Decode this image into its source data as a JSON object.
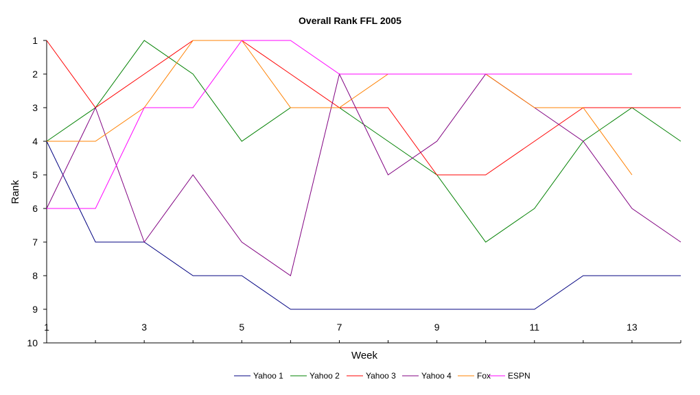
{
  "chart_data": {
    "type": "line",
    "title": "Overall Rank FFL 2005",
    "xlabel": "Week",
    "ylabel": "Rank",
    "x": [
      1,
      2,
      3,
      4,
      5,
      6,
      7,
      8,
      9,
      10,
      11,
      12,
      13,
      14
    ],
    "x_tick_labels": [
      "1",
      "3",
      "5",
      "7",
      "9",
      "11",
      "13"
    ],
    "y_tick_labels": [
      "1",
      "2",
      "3",
      "4",
      "5",
      "6",
      "7",
      "8",
      "9",
      "10"
    ],
    "xlim": [
      1,
      14
    ],
    "ylim": [
      1,
      10
    ],
    "y_reversed": true,
    "grid": false,
    "legend_position": "bottom",
    "series": [
      {
        "name": "Yahoo 1",
        "color": "#000080",
        "values": [
          4,
          7,
          7,
          8,
          8,
          9,
          9,
          9,
          9,
          9,
          9,
          8,
          8,
          8
        ]
      },
      {
        "name": "Yahoo 2",
        "color": "#008000",
        "values": [
          4,
          3,
          1,
          2,
          4,
          3,
          3,
          4,
          5,
          7,
          6,
          4,
          3,
          4
        ]
      },
      {
        "name": "Yahoo 3",
        "color": "#ff0000",
        "values": [
          1,
          3,
          2,
          1,
          1,
          2,
          3,
          3,
          5,
          5,
          4,
          3,
          3,
          3
        ]
      },
      {
        "name": "Yahoo 4",
        "color": "#800080",
        "values": [
          6,
          3,
          7,
          5,
          7,
          8,
          2,
          5,
          4,
          2,
          3,
          4,
          6,
          7
        ]
      },
      {
        "name": "Fox",
        "color": "#ff8000",
        "values": [
          4,
          4,
          3,
          1,
          1,
          3,
          3,
          2,
          2,
          2,
          3,
          3,
          5,
          null
        ]
      },
      {
        "name": "ESPN",
        "color": "#ff00ff",
        "values": [
          6,
          6,
          3,
          3,
          1,
          1,
          2,
          2,
          2,
          2,
          2,
          2,
          2,
          null
        ]
      }
    ]
  }
}
